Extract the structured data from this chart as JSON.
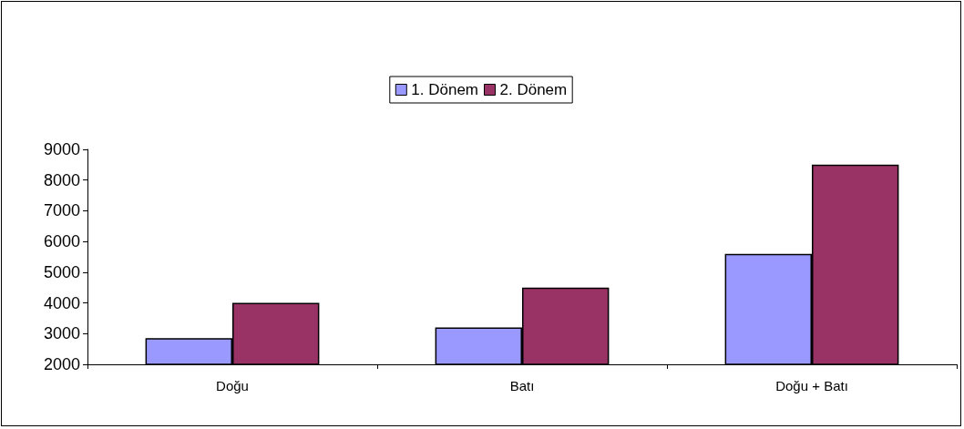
{
  "chart_data": {
    "type": "bar",
    "categories": [
      "Doğu",
      "Batı",
      "Doğu + Batı"
    ],
    "series": [
      {
        "name": "1. Dönem",
        "color": "#9999ff",
        "values": [
          2850,
          3200,
          5600
        ]
      },
      {
        "name": "2. Dönem",
        "color": "#993366",
        "values": [
          4000,
          4500,
          8500
        ]
      }
    ],
    "ylim": [
      2000,
      9000
    ],
    "yticks": [
      2000,
      3000,
      4000,
      5000,
      6000,
      7000,
      8000,
      9000
    ],
    "grid": false,
    "legend": "top"
  }
}
